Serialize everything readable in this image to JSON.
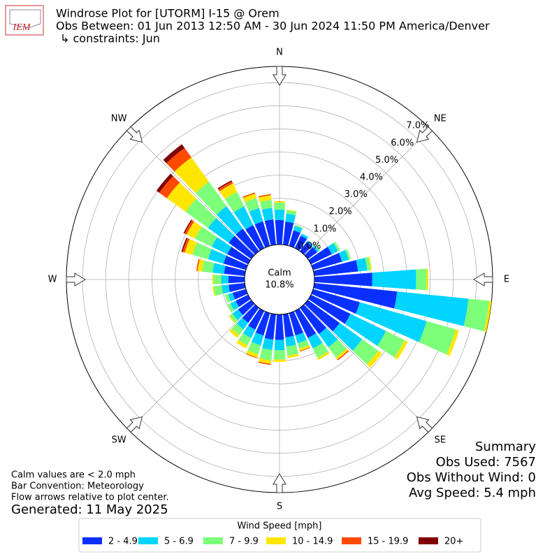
{
  "chart_data": {
    "type": "windrose",
    "logo": "IEM",
    "title": "Windrose Plot for [UTORM] I-15 @ Orem",
    "subtitle": "Obs Between: 01 Jun 2013 12:50 AM - 30 Jun 2024 11:50 PM America/Denver",
    "constraints": "↳ constraints: Jun",
    "x": [
      0,
      10,
      20,
      30,
      40,
      50,
      60,
      70,
      80,
      90,
      100,
      110,
      120,
      130,
      140,
      150,
      160,
      170,
      180,
      190,
      200,
      210,
      220,
      230,
      240,
      250,
      260,
      270,
      280,
      290,
      300,
      310,
      320,
      330,
      340,
      350
    ],
    "xticks": [
      {
        "value": 0,
        "label": "N"
      },
      {
        "value": 45,
        "label": "NE"
      },
      {
        "value": 90,
        "label": "E"
      },
      {
        "value": 135,
        "label": "SE"
      },
      {
        "value": 180,
        "label": "S"
      },
      {
        "value": 225,
        "label": "SW"
      },
      {
        "value": 270,
        "label": "W"
      },
      {
        "value": 315,
        "label": "NW"
      }
    ],
    "ylim": [
      0,
      7.7
    ],
    "yticks": [
      {
        "value": 0,
        "label": "0.0%"
      },
      {
        "value": 1,
        "label": "1.0%"
      },
      {
        "value": 2,
        "label": "2.0%"
      },
      {
        "value": 3,
        "label": "3.0%"
      },
      {
        "value": 4,
        "label": "4.0%"
      },
      {
        "value": 5,
        "label": "5.0%"
      },
      {
        "value": 6,
        "label": "6.0%"
      },
      {
        "value": 7,
        "label": "7.0%"
      }
    ],
    "grid": true,
    "calm": {
      "label": "Calm",
      "value": 10.8,
      "value_label": "10.8%"
    },
    "legend_title": "Wind Speed [mph]",
    "series": [
      {
        "name": "2 - 4.9",
        "color": "#0a30ff",
        "values": [
          1.06,
          1.0,
          0.7,
          0.6,
          0.5,
          0.5,
          1.0,
          1.3,
          1.9,
          2.5,
          3.6,
          2.1,
          1.9,
          1.7,
          1.4,
          1.3,
          1.0,
          1.0,
          1.1,
          1.1,
          1.0,
          0.9,
          0.8,
          0.7,
          0.6,
          0.6,
          0.7,
          0.7,
          0.9,
          1.0,
          1.0,
          1.2,
          1.2,
          1.1,
          1.1,
          1.1
        ]
      },
      {
        "name": "5 - 6.9",
        "color": "#00d4ff",
        "values": [
          0.45,
          0.35,
          0.2,
          0.1,
          0.08,
          0.1,
          0.3,
          0.3,
          0.4,
          1.9,
          3.1,
          3.0,
          1.7,
          1.2,
          0.7,
          0.5,
          0.35,
          0.4,
          0.45,
          0.45,
          0.45,
          0.4,
          0.35,
          0.3,
          0.25,
          0.2,
          0.3,
          0.3,
          0.5,
          0.7,
          0.75,
          1.1,
          1.2,
          0.9,
          0.6,
          0.5
        ]
      },
      {
        "name": "7 - 9.9",
        "color": "#7dff7a",
        "values": [
          0.3,
          0.15,
          0.05,
          0,
          0,
          0.05,
          0.1,
          0.1,
          0.15,
          0.45,
          0.9,
          1.3,
          0.9,
          0.85,
          0.55,
          0.45,
          0.25,
          0.4,
          0.4,
          0.45,
          0.4,
          0.35,
          0.3,
          0.15,
          0.15,
          0.15,
          0.35,
          0.35,
          0.45,
          0.7,
          0.8,
          1.2,
          1.3,
          0.7,
          0.45,
          0.35
        ]
      },
      {
        "name": "10 - 14.9",
        "color": "#ffe600",
        "values": [
          0.06,
          0.03,
          0,
          0,
          0,
          0,
          0,
          0,
          0.05,
          0.07,
          0.1,
          0.15,
          0.15,
          0.2,
          0.1,
          0.1,
          0.1,
          0.1,
          0.1,
          0.15,
          0.15,
          0.15,
          0.15,
          0.05,
          0,
          0,
          0.05,
          0.05,
          0.2,
          0.35,
          0.4,
          1.0,
          1.3,
          0.4,
          0.2,
          0.2
        ]
      },
      {
        "name": "15 - 19.9",
        "color": "#ff4a00",
        "values": [
          0,
          0,
          0,
          0,
          0,
          0,
          0,
          0,
          0,
          0,
          0,
          0,
          0,
          0,
          0.05,
          0,
          0.03,
          0,
          0,
          0.05,
          0.03,
          0,
          0,
          0,
          0,
          0,
          0,
          0,
          0.05,
          0.1,
          0.1,
          0.4,
          0.5,
          0.1,
          0.05,
          0.05
        ]
      },
      {
        "name": "20+",
        "color": "#800000",
        "values": [
          0,
          0,
          0,
          0,
          0,
          0,
          0,
          0,
          0,
          0,
          0,
          0,
          0,
          0,
          0,
          0,
          0,
          0,
          0,
          0,
          0,
          0,
          0,
          0,
          0,
          0,
          0,
          0,
          0,
          0.05,
          0.05,
          0.15,
          0.2,
          0.05,
          0,
          0
        ]
      }
    ],
    "notes": [
      "Calm values are < 2.0 mph",
      "Bar Convention: Meteorology",
      "Flow arrows relative to plot center."
    ],
    "generated": "Generated: 11 May 2025",
    "summary": [
      "Summary",
      "Obs Used: 7567",
      "Obs Without Wind: 0",
      "Avg Speed: 5.4 mph"
    ]
  }
}
